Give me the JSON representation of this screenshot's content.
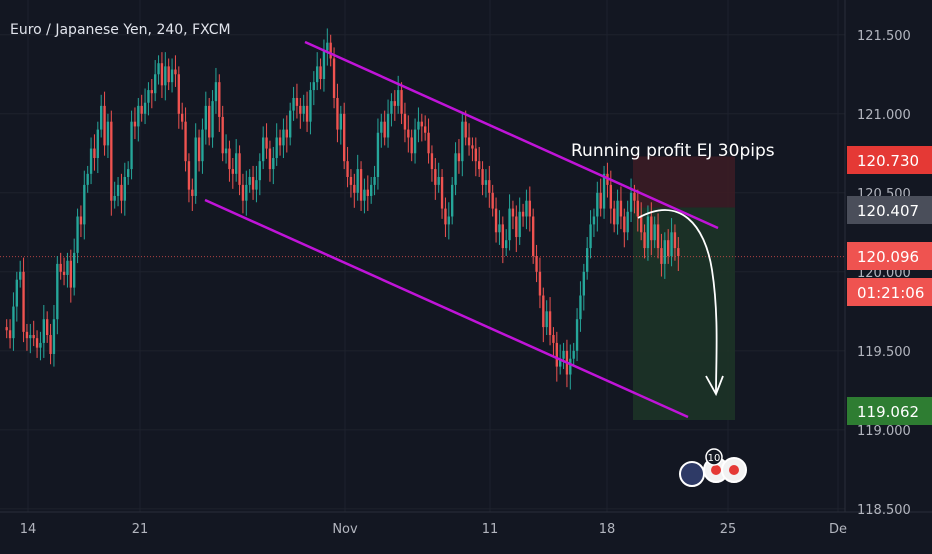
{
  "header": {
    "symbol_title": "Euro / Japanese Yen, 240, FXCM"
  },
  "annotation": {
    "text": "Running profit EJ 30pips"
  },
  "price_labels": [
    {
      "key": "target_high",
      "value": "120.730",
      "color": "#e53935"
    },
    {
      "key": "entry",
      "value": "120.407",
      "color": "#4a4e5a"
    },
    {
      "key": "current",
      "value": "120.096",
      "color": "#ef5350"
    },
    {
      "key": "countdown",
      "value": "01:21:06",
      "color": "#ef5350"
    },
    {
      "key": "target_low",
      "value": "119.062",
      "color": "#2e7d32"
    }
  ],
  "events": {
    "count_badge": "10"
  },
  "colors": {
    "background": "#131722",
    "up_candle": "#26a69a",
    "down_candle": "#ef5350",
    "channel": "#c014d8",
    "grid": "#1e222d",
    "stop_zone": "#3b1c25",
    "profit_zone": "#1d3327"
  },
  "chart_data": {
    "type": "candlestick",
    "title": "Euro / Japanese Yen, 240, FXCM",
    "x_tick_labels": [
      "14",
      "21",
      "Nov",
      "11",
      "18",
      "25",
      "De"
    ],
    "y_tick_labels": [
      "121.500",
      "121.000",
      "120.500",
      "120.000",
      "119.500",
      "119.000",
      "118.500"
    ],
    "ylim": [
      118.48,
      121.72
    ],
    "current_price": 120.096,
    "position": {
      "entry": 120.407,
      "stop": 120.73,
      "target": 119.062,
      "direction": "short"
    },
    "channel": {
      "upper_line": [
        [
          0.0,
          121.53
        ],
        [
          1.0,
          120.43
        ]
      ],
      "lower_line": [
        [
          0.0,
          120.43
        ],
        [
          1.0,
          119.07
        ]
      ]
    },
    "closes": [
      119.63,
      119.58,
      119.78,
      119.95,
      120.0,
      119.62,
      119.58,
      119.6,
      119.58,
      119.52,
      119.55,
      119.7,
      119.6,
      119.48,
      119.7,
      120.05,
      120.0,
      119.98,
      120.07,
      119.9,
      120.12,
      120.35,
      120.3,
      120.55,
      120.62,
      120.78,
      120.72,
      120.9,
      121.05,
      120.8,
      120.95,
      120.45,
      120.48,
      120.55,
      120.45,
      120.6,
      120.65,
      120.95,
      120.92,
      121.05,
      121.0,
      121.07,
      121.15,
      121.13,
      121.25,
      121.32,
      121.18,
      121.3,
      121.2,
      121.28,
      121.25,
      121.0,
      120.95,
      120.7,
      120.52,
      120.48,
      120.85,
      120.7,
      120.9,
      121.05,
      120.85,
      121.08,
      121.2,
      120.98,
      120.75,
      120.78,
      120.65,
      120.62,
      120.75,
      120.55,
      120.45,
      120.55,
      120.6,
      120.52,
      120.58,
      120.7,
      120.85,
      120.78,
      120.65,
      120.72,
      120.85,
      120.8,
      120.9,
      120.85,
      121.02,
      121.1,
      121.05,
      121.0,
      121.05,
      120.95,
      121.15,
      121.2,
      121.3,
      121.22,
      121.4,
      121.45,
      121.35,
      121.1,
      120.9,
      121.0,
      120.7,
      120.6,
      120.55,
      120.5,
      120.65,
      120.45,
      120.52,
      120.48,
      120.55,
      120.6,
      120.88,
      120.95,
      120.85,
      121.0,
      121.08,
      121.05,
      121.15,
      121.0,
      120.9,
      120.85,
      120.75,
      120.9,
      120.95,
      120.92,
      120.88,
      120.75,
      120.65,
      120.55,
      120.6,
      120.4,
      120.3,
      120.35,
      120.55,
      120.75,
      120.7,
      120.95,
      120.85,
      120.8,
      120.78,
      120.7,
      120.65,
      120.55,
      120.58,
      120.5,
      120.4,
      120.25,
      120.3,
      120.15,
      120.2,
      120.4,
      120.35,
      120.22,
      120.38,
      120.35,
      120.45,
      120.35,
      120.1,
      120.0,
      119.85,
      119.65,
      119.75,
      119.6,
      119.55,
      119.4,
      119.45,
      119.5,
      119.35,
      119.45,
      119.5,
      119.7,
      119.85,
      120.0,
      120.15,
      120.3,
      120.35,
      120.5,
      120.4,
      120.62,
      120.55,
      120.4,
      120.3,
      120.45,
      120.35,
      120.25,
      120.38,
      120.5,
      120.45,
      120.35,
      120.25,
      120.15,
      120.35,
      120.2,
      120.3,
      120.15,
      120.05,
      120.2,
      120.1,
      120.25,
      120.15,
      120.1
    ]
  }
}
